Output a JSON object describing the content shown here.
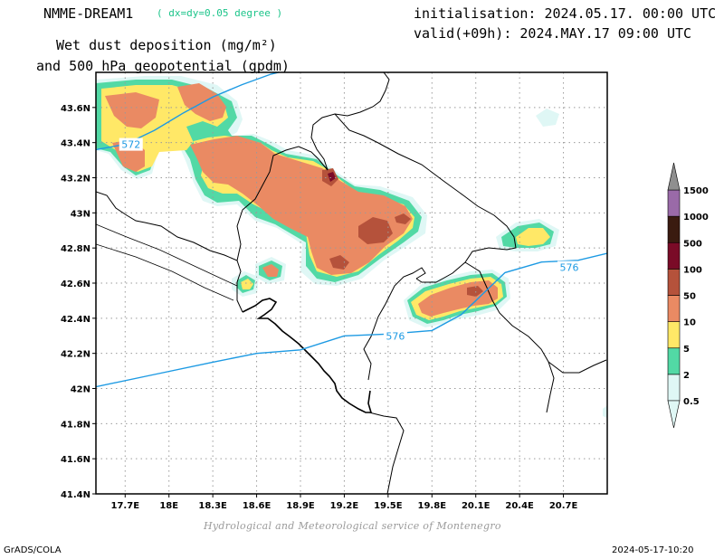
{
  "header": {
    "model": "NMME-DREAM1",
    "resolution": "( dx=dy=0.05 degree )",
    "title_line1": "Wet dust deposition (mg/m²)",
    "title_line2": "and 500 hPa geopotential (gpdm)",
    "init": "initialisation: 2024.05.17. 00:00 UTC",
    "valid": "valid(+09h): 2024.MAY.17 09:00 UTC"
  },
  "footer": {
    "credit": "Hydrological and Meteorological service of Montenegro",
    "software": "GrADS/COLA",
    "timestamp": "2024-05-17-10:20"
  },
  "map": {
    "lon_range": [
      17.5,
      21.0
    ],
    "lat_range": [
      41.4,
      43.8
    ],
    "lon_ticks": [
      17.7,
      18.0,
      18.3,
      18.6,
      18.9,
      19.2,
      19.5,
      19.8,
      20.1,
      20.4,
      20.7
    ],
    "lon_labels": [
      "17.7E",
      "18E",
      "18.3E",
      "18.6E",
      "18.9E",
      "19.2E",
      "19.5E",
      "19.8E",
      "20.1E",
      "20.4E",
      "20.7E"
    ],
    "lat_ticks": [
      41.4,
      41.6,
      41.8,
      42.0,
      42.2,
      42.4,
      42.6,
      42.8,
      43.0,
      43.2,
      43.4,
      43.6
    ],
    "lat_labels": [
      "41.4N",
      "41.6N",
      "41.8N",
      "42N",
      "42.2N",
      "42.4N",
      "42.6N",
      "42.8N",
      "43N",
      "43.2N",
      "43.4N",
      "43.6N"
    ],
    "grid": true,
    "contours": [
      {
        "label": "572",
        "label_lon": 17.74,
        "label_lat": 43.39,
        "points": [
          [
            17.5,
            43.36
          ],
          [
            17.7,
            43.39
          ],
          [
            17.9,
            43.47
          ],
          [
            18.1,
            43.57
          ],
          [
            18.3,
            43.66
          ],
          [
            18.5,
            43.73
          ],
          [
            18.7,
            43.79
          ],
          [
            18.8,
            43.81
          ]
        ]
      },
      {
        "label": "576",
        "label_lon": 19.55,
        "label_lat": 42.3,
        "points": [
          [
            17.5,
            42.01
          ],
          [
            17.9,
            42.08
          ],
          [
            18.3,
            42.15
          ],
          [
            18.6,
            42.2
          ],
          [
            18.9,
            42.22
          ],
          [
            19.2,
            42.3
          ],
          [
            19.5,
            42.31
          ],
          [
            19.8,
            42.33
          ],
          [
            20.0,
            42.42
          ],
          [
            20.3,
            42.66
          ],
          [
            20.55,
            42.72
          ],
          [
            20.8,
            42.73
          ],
          [
            21.0,
            42.77
          ]
        ]
      },
      {
        "label": "576",
        "label_lon": 20.74,
        "label_lat": 42.69,
        "points": []
      }
    ]
  },
  "legend": {
    "levels": [
      "0.5",
      "2",
      "5",
      "10",
      "50",
      "100",
      "500",
      "1000",
      "1500"
    ],
    "colors": [
      "#dff7f5",
      "#52d9a5",
      "#ffe867",
      "#ea8a63",
      "#b5523b",
      "#7a0b27",
      "#3a1b10",
      "#9a6aa8",
      "#8f8f8f"
    ]
  },
  "colors": {
    "contour": "#1d9ae3",
    "border": "#000000",
    "grid": "#9a9a9a",
    "model_res": "#1cc48a",
    "credit": "#9a9a9a"
  }
}
